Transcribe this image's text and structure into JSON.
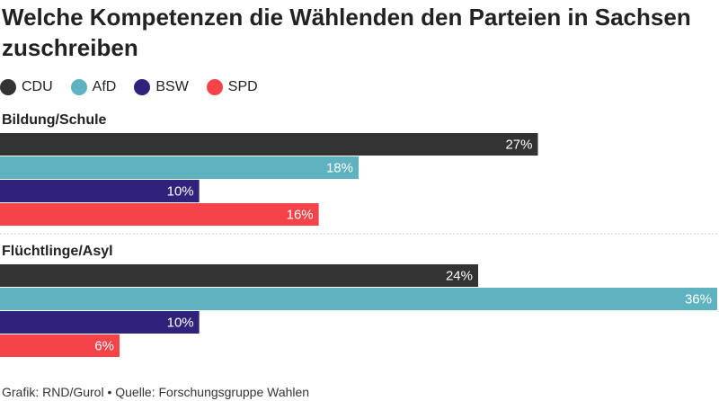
{
  "title": "Welche Kompetenzen die Wählenden den Parteien in Sachsen zuschreiben",
  "footer": "Grafik: RND/Gurol • Quelle: Forschungsgruppe Wahlen",
  "legend": [
    {
      "name": "CDU",
      "color": "#333333"
    },
    {
      "name": "AfD",
      "color": "#5fb3c1"
    },
    {
      "name": "BSW",
      "color": "#30227a"
    },
    {
      "name": "SPD",
      "color": "#f4444a"
    }
  ],
  "chart_data": {
    "type": "bar",
    "orientation": "horizontal",
    "xlim": [
      0,
      36
    ],
    "value_suffix": "%",
    "groups": [
      {
        "name": "Bildung/Schule",
        "values": [
          27,
          18,
          10,
          16
        ]
      },
      {
        "name": "Flüchtlinge/Asyl",
        "values": [
          24,
          36,
          10,
          6
        ]
      }
    ],
    "series": [
      "CDU",
      "AfD",
      "BSW",
      "SPD"
    ],
    "colors": [
      "#333333",
      "#5fb3c1",
      "#30227a",
      "#f4444a"
    ]
  }
}
